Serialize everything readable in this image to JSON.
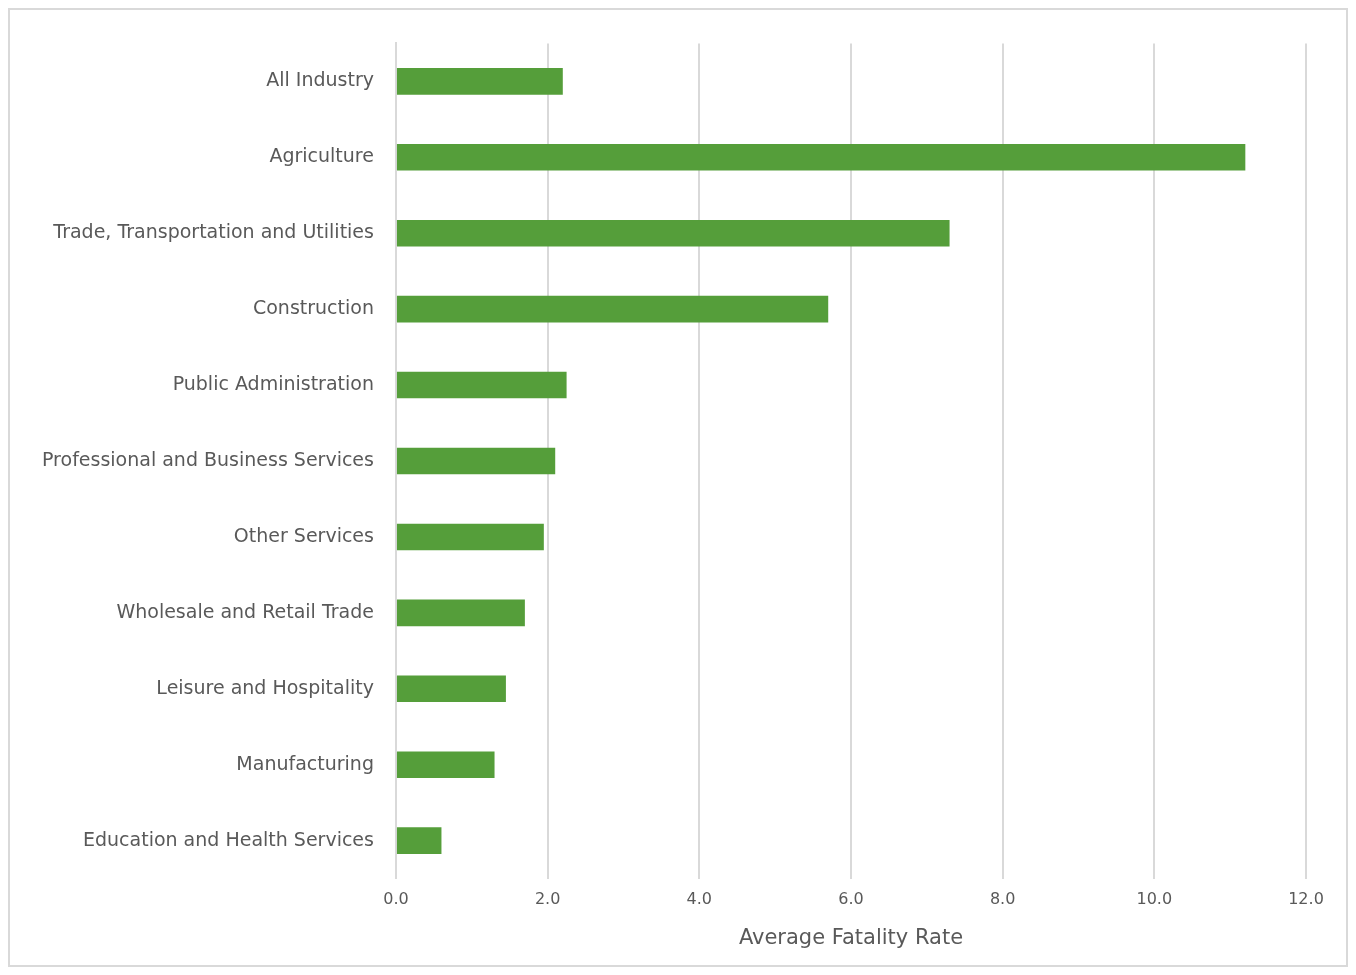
{
  "chart_data": {
    "type": "bar",
    "orientation": "horizontal",
    "xlabel": "Average Fatality Rate",
    "categories": [
      "All Industry",
      "Agriculture",
      "Trade, Transportation and Utilities",
      "Construction",
      "Public Administration",
      "Professional and Business Services",
      "Other Services",
      "Wholesale and Retail Trade",
      "Leisure and Hospitality",
      "Manufacturing",
      "Education and Health Services"
    ],
    "values": [
      2.2,
      11.2,
      7.3,
      5.7,
      2.25,
      2.1,
      1.95,
      1.7,
      1.45,
      1.3,
      0.6
    ],
    "color": "#559e3a",
    "xlim": [
      0,
      12
    ],
    "xticks": [
      {
        "value": 0,
        "label": "0.0"
      },
      {
        "value": 2,
        "label": "2.0"
      },
      {
        "value": 4,
        "label": "4.0"
      },
      {
        "value": 6,
        "label": "6.0"
      },
      {
        "value": 8,
        "label": "8.0"
      },
      {
        "value": 10,
        "label": "10.0"
      },
      {
        "value": 12,
        "label": "12.0"
      }
    ],
    "grid": "x",
    "legend": false
  }
}
